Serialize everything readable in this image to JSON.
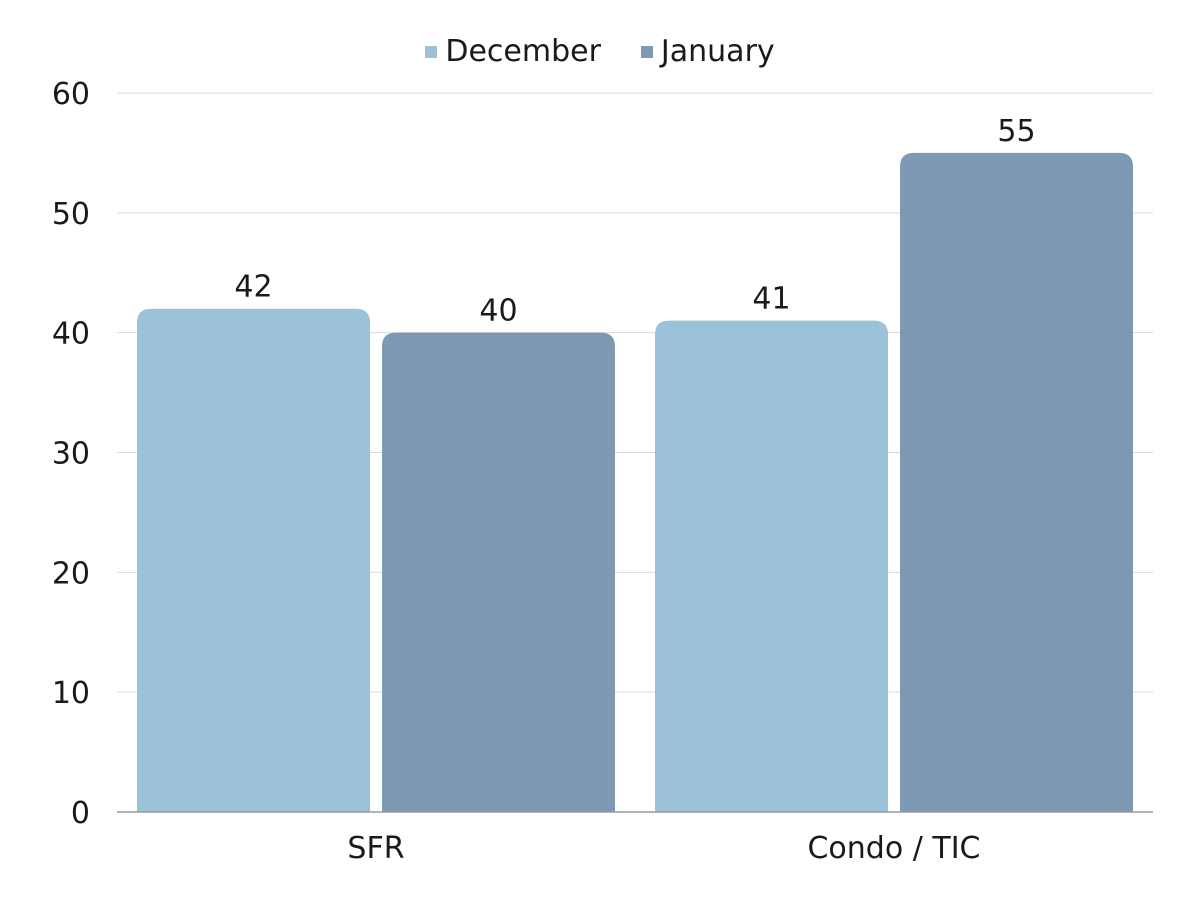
{
  "chart_data": {
    "type": "bar",
    "categories": [
      "SFR",
      "Condo / TIC"
    ],
    "series": [
      {
        "name": "December",
        "color": "#9bc2d8",
        "values": [
          42,
          41
        ]
      },
      {
        "name": "January",
        "color": "#7f98b4",
        "values": [
          40,
          55
        ]
      }
    ],
    "ylim": [
      0,
      60
    ],
    "yticks": [
      0,
      10,
      20,
      30,
      40,
      50,
      60
    ],
    "grid": true,
    "legend_position": "top-center",
    "data_labels": true
  }
}
